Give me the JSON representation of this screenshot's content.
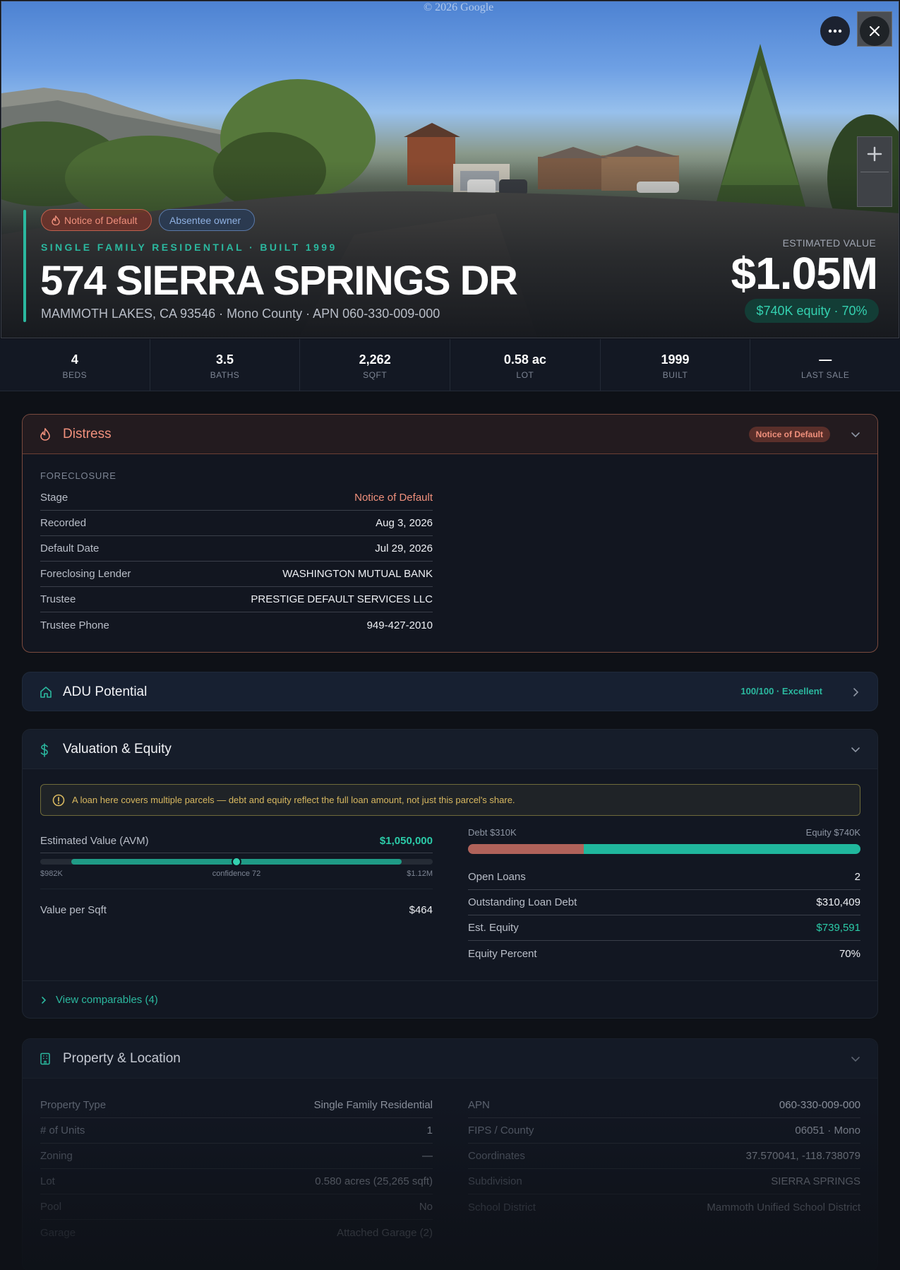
{
  "hero": {
    "watermark": "© 2026 Google",
    "badges": [
      {
        "label": "Notice of Default",
        "color": "#f0907c"
      },
      {
        "label": "Absentee owner",
        "color": "#8fb1e2"
      }
    ],
    "subtitle": "SINGLE FAMILY RESIDENTIAL · BUILT 1999",
    "address": "574 SIERRA SPRINGS DR",
    "location": "MAMMOTH LAKES, CA 93546 · Mono County · APN 060-330-009-000",
    "estimated_label": "ESTIMATED VALUE",
    "estimated_value": "$1.05M",
    "equity_pill": "$740K equity · 70%",
    "zoom_in_symbol": "+",
    "accent": "#2bb89f"
  },
  "stats": [
    {
      "value": "4",
      "label": "BEDS"
    },
    {
      "value": "3.5",
      "label": "BATHS"
    },
    {
      "value": "2,262",
      "label": "SQFT"
    },
    {
      "value": "0.58 ac",
      "label": "LOT"
    },
    {
      "value": "1999",
      "label": "BUILT"
    },
    {
      "value": "—",
      "label": "LAST SALE"
    }
  ],
  "distress": {
    "title": "Distress",
    "badge": "Notice of Default",
    "section_label": "FORECLOSURE",
    "rows": [
      {
        "k": "Stage",
        "v": "Notice of Default"
      },
      {
        "k": "Recorded",
        "v": "Aug 3, 2026"
      },
      {
        "k": "Default Date",
        "v": "Jul 29, 2026"
      },
      {
        "k": "Foreclosing Lender",
        "v": "WASHINGTON MUTUAL BANK"
      },
      {
        "k": "Trustee",
        "v": "PRESTIGE DEFAULT SERVICES LLC"
      },
      {
        "k": "Trustee Phone",
        "v": "949-427-2010"
      }
    ]
  },
  "adu": {
    "title": "ADU Potential",
    "score": "100/100 · Excellent"
  },
  "valuation": {
    "title": "Valuation & Equity",
    "alert": "A loan here covers multiple parcels — debt and equity reflect the full loan amount, not just this parcel's share.",
    "avm_label": "Estimated Value (AVM)",
    "avm_value": "$1,050,000",
    "range_low": "$982K",
    "range_high": "$1.12M",
    "confidence": "confidence 72",
    "range_fraction": {
      "start": 0.08,
      "end": 0.92,
      "point": 0.5
    },
    "vps_label": "Value per Sqft",
    "vps_value": "$464",
    "debt_label": "Debt $310K",
    "equity_label": "Equity $740K",
    "debt_fraction": 0.295,
    "loans": [
      {
        "k": "Open Loans",
        "v": "2"
      },
      {
        "k": "Outstanding Loan Debt",
        "v": "$310,409"
      },
      {
        "k": "Est. Equity",
        "v": "$739,591"
      },
      {
        "k": "Equity Percent",
        "v": "70%"
      }
    ],
    "comparables": "View comparables (4)"
  },
  "property": {
    "title": "Property & Location",
    "left": [
      {
        "k": "Property Type",
        "v": "Single Family Residential"
      },
      {
        "k": "# of Units",
        "v": "1"
      },
      {
        "k": "Zoning",
        "v": "—"
      },
      {
        "k": "Lot",
        "v": "0.580 acres (25,265 sqft)"
      },
      {
        "k": "Pool",
        "v": "No"
      },
      {
        "k": "Garage",
        "v": "Attached Garage (2)"
      }
    ],
    "right": [
      {
        "k": "APN",
        "v": "060-330-009-000"
      },
      {
        "k": "FIPS / County",
        "v": "06051 · Mono"
      },
      {
        "k": "Coordinates",
        "v": "37.570041, -118.738079"
      },
      {
        "k": "Subdivision",
        "v": "SIERRA SPRINGS"
      },
      {
        "k": "School District",
        "v": "Mammoth Unified School District"
      }
    ]
  }
}
